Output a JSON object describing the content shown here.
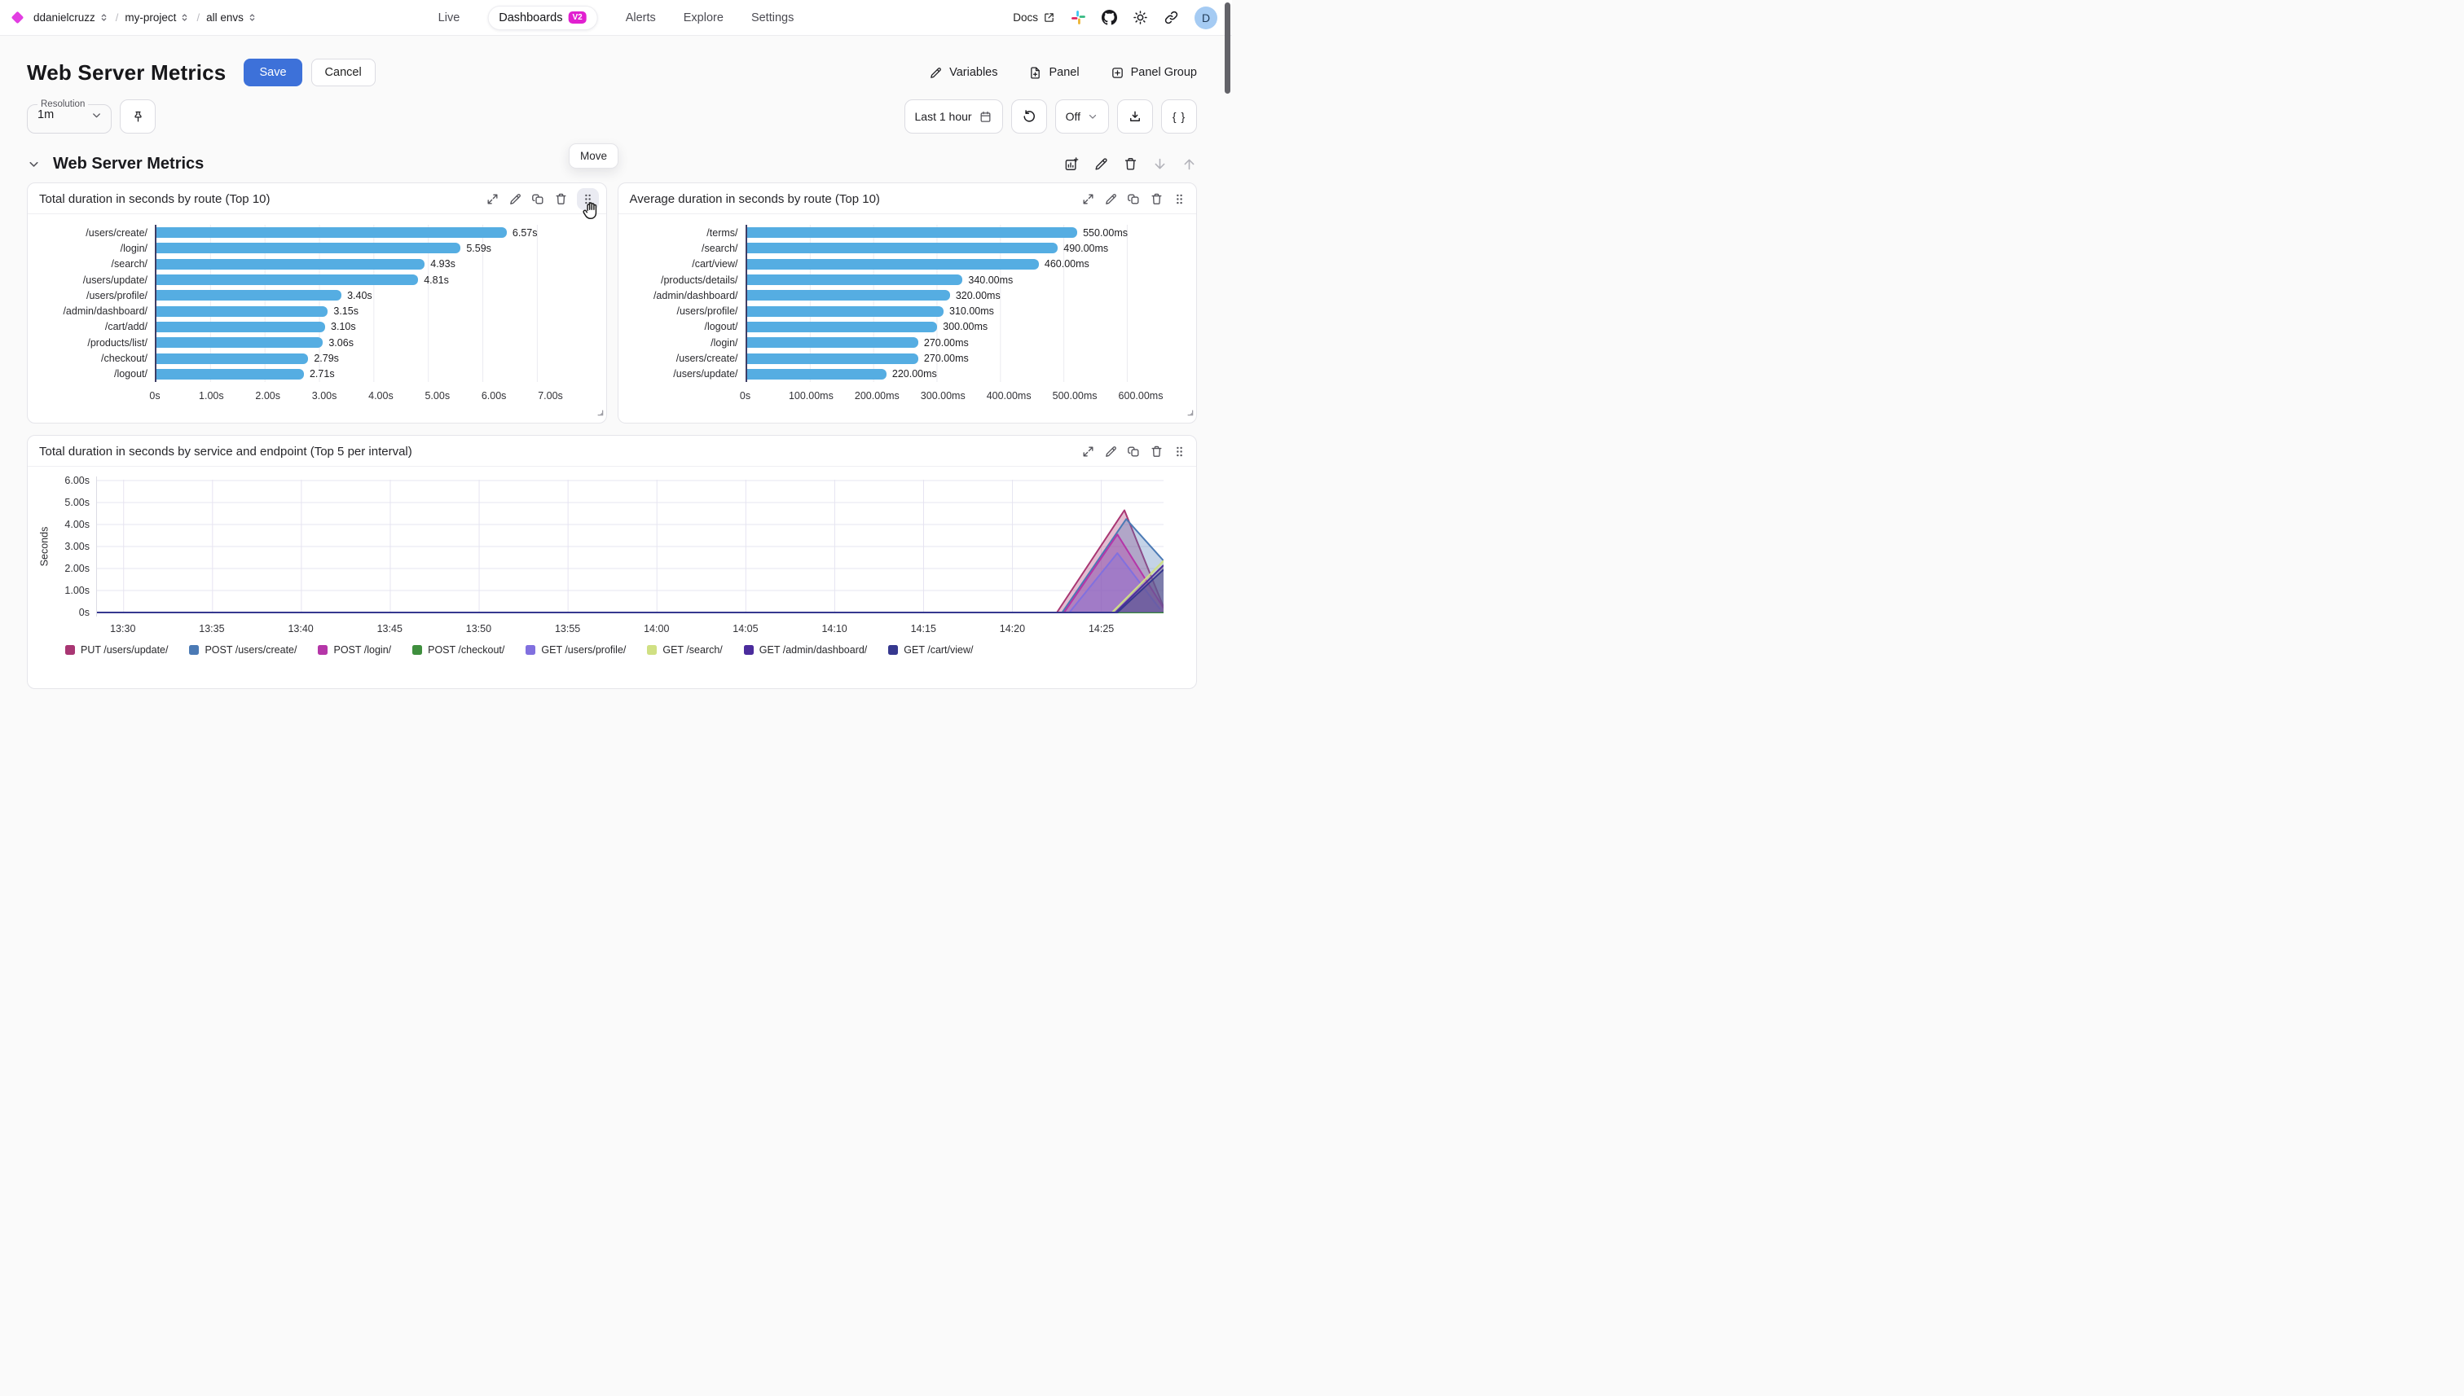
{
  "nav": {
    "breadcrumb": [
      {
        "label": "ddanielcruzz"
      },
      {
        "label": "my-project"
      },
      {
        "label": "all envs"
      }
    ],
    "tabs": [
      {
        "label": "Live",
        "active": false
      },
      {
        "label": "Dashboards",
        "active": true,
        "badge": "V2"
      },
      {
        "label": "Alerts",
        "active": false
      },
      {
        "label": "Explore",
        "active": false
      },
      {
        "label": "Settings",
        "active": false
      }
    ],
    "docs_label": "Docs",
    "avatar_initial": "D",
    "right_icons": [
      "external-link-icon",
      "slack-icon",
      "github-icon",
      "sun-icon",
      "link-icon"
    ]
  },
  "header": {
    "title": "Web Server Metrics",
    "save_label": "Save",
    "cancel_label": "Cancel",
    "variables_label": "Variables",
    "panel_label": "Panel",
    "panel_group_label": "Panel Group"
  },
  "toolbar": {
    "resolution_label": "Resolution",
    "resolution_value": "1m",
    "time_range_label": "Last 1 hour",
    "live_toggle_label": "Off",
    "braces_label": "{ }"
  },
  "section": {
    "title": "Web Server Metrics",
    "tooltip": "Move"
  },
  "colors": {
    "accent_blue": "#3d71d9",
    "brand_magenta": "#e23ee2",
    "badge_magenta": "#e11fd0",
    "bar_blue": "#55ade2",
    "avatar_bg": "#a5cbf3"
  },
  "chart_data": [
    {
      "type": "bar",
      "orientation": "horizontal",
      "title": "Total duration in seconds by route (Top 10)",
      "categories": [
        "/users/create/",
        "/login/",
        "/search/",
        "/users/update/",
        "/users/profile/",
        "/admin/dashboard/",
        "/cart/add/",
        "/products/list/",
        "/checkout/",
        "/logout/"
      ],
      "values": [
        6.57,
        5.59,
        4.93,
        4.81,
        3.4,
        3.15,
        3.1,
        3.06,
        2.79,
        2.71
      ],
      "value_labels": [
        "6.57s",
        "5.59s",
        "4.93s",
        "4.81s",
        "3.40s",
        "3.15s",
        "3.10s",
        "3.06s",
        "2.79s",
        "2.71s"
      ],
      "x_ticks": [
        "0s",
        "1.00s",
        "2.00s",
        "3.00s",
        "4.00s",
        "5.00s",
        "6.00s",
        "7.00s"
      ],
      "xlim": [
        0,
        7
      ],
      "bar_color": "#55ade2",
      "grid": true
    },
    {
      "type": "bar",
      "orientation": "horizontal",
      "title": "Average duration in seconds by route (Top 10)",
      "categories": [
        "/terms/",
        "/search/",
        "/cart/view/",
        "/products/details/",
        "/admin/dashboard/",
        "/users/profile/",
        "/logout/",
        "/login/",
        "/users/create/",
        "/users/update/"
      ],
      "values": [
        550,
        490,
        460,
        340,
        320,
        310,
        300,
        270,
        270,
        220
      ],
      "value_labels": [
        "550.00ms",
        "490.00ms",
        "460.00ms",
        "340.00ms",
        "320.00ms",
        "310.00ms",
        "300.00ms",
        "270.00ms",
        "270.00ms",
        "220.00ms"
      ],
      "x_ticks": [
        "0s",
        "100.00ms",
        "200.00ms",
        "300.00ms",
        "400.00ms",
        "500.00ms",
        "600.00ms"
      ],
      "xlim": [
        0,
        600
      ],
      "bar_color": "#55ade2",
      "grid": true
    },
    {
      "type": "area",
      "title": "Total duration in seconds by service and endpoint (Top 5 per interval)",
      "ylabel": "Seconds",
      "y_ticks": [
        "0s",
        "1.00s",
        "2.00s",
        "3.00s",
        "4.00s",
        "5.00s",
        "6.00s"
      ],
      "ylim": [
        0,
        6
      ],
      "x_ticks": [
        "13:30",
        "13:35",
        "13:40",
        "13:45",
        "13:50",
        "13:55",
        "14:00",
        "14:05",
        "14:10",
        "14:15",
        "14:20",
        "14:25"
      ],
      "x_tick_minutes": [
        0,
        5,
        10,
        15,
        20,
        25,
        30,
        35,
        40,
        45,
        50,
        55
      ],
      "xlim": [
        -1.5,
        58.5
      ],
      "grid": true,
      "legend_position": "bottom",
      "series": [
        {
          "name": "PUT /users/update/",
          "color": "#a93673",
          "points": [
            [
              -1.5,
              0
            ],
            [
              52.5,
              0
            ],
            [
              56.3,
              4.65
            ],
            [
              58.5,
              0.25
            ]
          ]
        },
        {
          "name": "POST /users/create/",
          "color": "#4b7ab5",
          "points": [
            [
              -1.5,
              0
            ],
            [
              52.8,
              0
            ],
            [
              56.4,
              4.25
            ],
            [
              58.5,
              2.35
            ]
          ]
        },
        {
          "name": "POST /login/",
          "color": "#b536a8",
          "points": [
            [
              -1.5,
              0
            ],
            [
              52.9,
              0
            ],
            [
              55.9,
              3.55
            ],
            [
              58.5,
              0.2
            ]
          ]
        },
        {
          "name": "POST /checkout/",
          "color": "#3f8f3e",
          "points": [
            [
              -1.5,
              0
            ],
            [
              58.5,
              0
            ]
          ]
        },
        {
          "name": "GET /users/profile/",
          "color": "#8170df",
          "points": [
            [
              -1.5,
              0
            ],
            [
              53.2,
              0
            ],
            [
              55.9,
              2.7
            ],
            [
              58.3,
              0.15
            ]
          ]
        },
        {
          "name": "GET /search/",
          "color": "#d0e083",
          "points": [
            [
              -1.5,
              0
            ],
            [
              55.6,
              0
            ],
            [
              58.5,
              2.35
            ]
          ]
        },
        {
          "name": "GET /admin/dashboard/",
          "color": "#4b2c9d",
          "points": [
            [
              -1.5,
              0
            ],
            [
              55.8,
              0
            ],
            [
              58.5,
              2.15
            ]
          ]
        },
        {
          "name": "GET /cart/view/",
          "color": "#36388f",
          "points": [
            [
              -1.5,
              0
            ],
            [
              55.9,
              0
            ],
            [
              58.5,
              1.95
            ]
          ]
        }
      ]
    }
  ]
}
